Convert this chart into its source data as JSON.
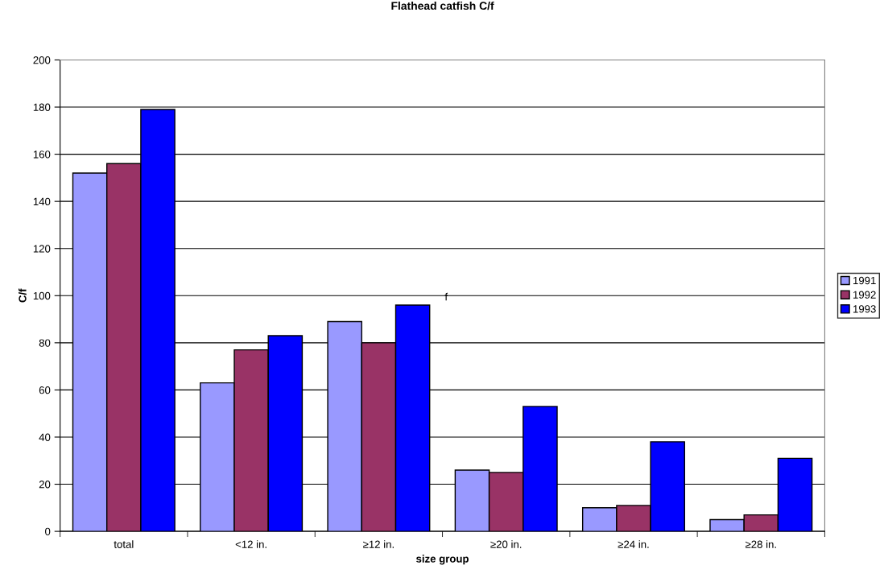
{
  "chart_data": {
    "type": "bar",
    "title": "Flathead catfish C/f",
    "xlabel": "size group",
    "ylabel": "C/f",
    "categories": [
      "total",
      "<12 in.",
      "≥12 in.",
      "≥20 in.",
      "≥24 in.",
      "≥28 in."
    ],
    "series": [
      {
        "name": "1991",
        "color": "#9999ff",
        "values": [
          152,
          63,
          89,
          26,
          10,
          5
        ]
      },
      {
        "name": "1992",
        "color": "#993366",
        "values": [
          156,
          77,
          80,
          25,
          11,
          7
        ]
      },
      {
        "name": "1993",
        "color": "#0000ff",
        "values": [
          179,
          83,
          96,
          53,
          38,
          31
        ]
      }
    ],
    "ylim": [
      0,
      200
    ],
    "yticks": [
      0,
      20,
      40,
      60,
      80,
      100,
      120,
      140,
      160,
      180,
      200
    ],
    "grid": "y",
    "legend": "right",
    "annotations": [
      "f"
    ]
  }
}
